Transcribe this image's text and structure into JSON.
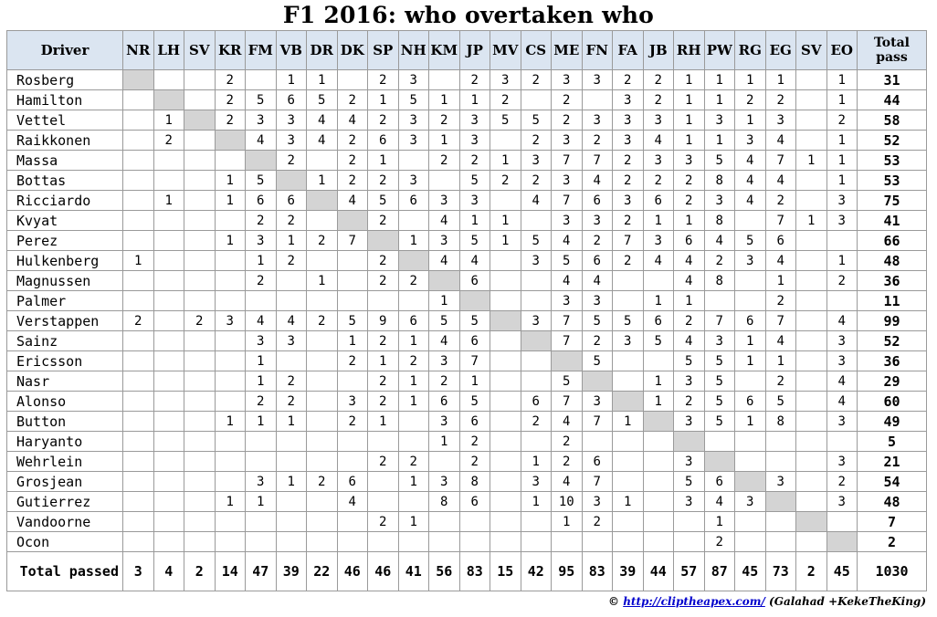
{
  "title": "F1 2016: who overtaken who",
  "header": {
    "driver_label": "Driver",
    "total_label": "Total pass",
    "columns": [
      "NR",
      "LH",
      "SV",
      "KR",
      "FM",
      "VB",
      "DR",
      "DK",
      "SP",
      "NH",
      "KM",
      "JP",
      "MV",
      "CS",
      "ME",
      "FN",
      "FA",
      "JB",
      "RH",
      "PW",
      "RG",
      "EG",
      "SV",
      "EO"
    ]
  },
  "rows": [
    {
      "driver": "Rosberg",
      "diag": 0,
      "cells": [
        "",
        "",
        "",
        "2",
        "",
        "1",
        "1",
        "",
        "2",
        "3",
        "",
        "2",
        "3",
        "2",
        "3",
        "3",
        "2",
        "2",
        "1",
        "1",
        "1",
        "1",
        "",
        "1"
      ],
      "total": "31"
    },
    {
      "driver": "Hamilton",
      "diag": 1,
      "cells": [
        "",
        "",
        "",
        "2",
        "5",
        "6",
        "5",
        "2",
        "1",
        "5",
        "1",
        "1",
        "2",
        "",
        "2",
        "",
        "3",
        "2",
        "1",
        "1",
        "2",
        "2",
        "",
        "1"
      ],
      "total": "44"
    },
    {
      "driver": "Vettel",
      "diag": 2,
      "cells": [
        "",
        "1",
        "",
        "2",
        "3",
        "3",
        "4",
        "4",
        "2",
        "3",
        "2",
        "3",
        "5",
        "5",
        "2",
        "3",
        "3",
        "3",
        "1",
        "3",
        "1",
        "3",
        "",
        "2"
      ],
      "total": "58"
    },
    {
      "driver": "Raikkonen",
      "diag": 3,
      "cells": [
        "",
        "2",
        "",
        "",
        "4",
        "3",
        "4",
        "2",
        "6",
        "3",
        "1",
        "3",
        "",
        "2",
        "3",
        "2",
        "3",
        "4",
        "1",
        "1",
        "3",
        "4",
        "",
        "1"
      ],
      "total": "52"
    },
    {
      "driver": "Massa",
      "diag": 4,
      "cells": [
        "",
        "",
        "",
        "",
        "",
        "2",
        "",
        "2",
        "1",
        "",
        "2",
        "2",
        "1",
        "3",
        "7",
        "7",
        "2",
        "3",
        "3",
        "5",
        "4",
        "7",
        "1",
        "1"
      ],
      "total": "53"
    },
    {
      "driver": "Bottas",
      "diag": 5,
      "cells": [
        "",
        "",
        "",
        "1",
        "5",
        "",
        "1",
        "2",
        "2",
        "3",
        "",
        "5",
        "2",
        "2",
        "3",
        "4",
        "2",
        "2",
        "2",
        "8",
        "4",
        "4",
        "",
        "1"
      ],
      "total": "53"
    },
    {
      "driver": "Ricciardo",
      "diag": 6,
      "cells": [
        "",
        "1",
        "",
        "1",
        "6",
        "6",
        "",
        "4",
        "5",
        "6",
        "3",
        "3",
        "",
        "4",
        "7",
        "6",
        "3",
        "6",
        "2",
        "3",
        "4",
        "2",
        "",
        "3"
      ],
      "total": "75"
    },
    {
      "driver": "Kvyat",
      "diag": 7,
      "cells": [
        "",
        "",
        "",
        "",
        "2",
        "2",
        "",
        "",
        "2",
        "",
        "4",
        "1",
        "1",
        "",
        "3",
        "3",
        "2",
        "1",
        "1",
        "8",
        "",
        "7",
        "1",
        "3"
      ],
      "total": "41"
    },
    {
      "driver": "Perez",
      "diag": 8,
      "cells": [
        "",
        "",
        "",
        "1",
        "3",
        "1",
        "2",
        "7",
        "",
        "1",
        "3",
        "5",
        "1",
        "5",
        "4",
        "2",
        "7",
        "3",
        "6",
        "4",
        "5",
        "6",
        "",
        ""
      ],
      "total": "66"
    },
    {
      "driver": "Hulkenberg",
      "diag": 9,
      "cells": [
        "1",
        "",
        "",
        "",
        "1",
        "2",
        "",
        "",
        "2",
        "",
        "4",
        "4",
        "",
        "3",
        "5",
        "6",
        "2",
        "4",
        "4",
        "2",
        "3",
        "4",
        "",
        "1"
      ],
      "total": "48"
    },
    {
      "driver": "Magnussen",
      "diag": 10,
      "cells": [
        "",
        "",
        "",
        "",
        "2",
        "",
        "1",
        "",
        "2",
        "2",
        "",
        "6",
        "",
        "",
        "4",
        "4",
        "",
        "",
        "4",
        "8",
        "",
        "1",
        "",
        "2"
      ],
      "total": "36"
    },
    {
      "driver": "Palmer",
      "diag": 11,
      "cells": [
        "",
        "",
        "",
        "",
        "",
        "",
        "",
        "",
        "",
        "",
        "1",
        "",
        "",
        "",
        "3",
        "3",
        "",
        "1",
        "1",
        "",
        "",
        "2",
        "",
        ""
      ],
      "total": "11"
    },
    {
      "driver": "Verstappen",
      "diag": 12,
      "cells": [
        "2",
        "",
        "2",
        "3",
        "4",
        "4",
        "2",
        "5",
        "9",
        "6",
        "5",
        "5",
        "",
        "3",
        "7",
        "5",
        "5",
        "6",
        "2",
        "7",
        "6",
        "7",
        "",
        "4"
      ],
      "total": "99"
    },
    {
      "driver": "Sainz",
      "diag": 13,
      "cells": [
        "",
        "",
        "",
        "",
        "3",
        "3",
        "",
        "1",
        "2",
        "1",
        "4",
        "6",
        "",
        "",
        "7",
        "2",
        "3",
        "5",
        "4",
        "3",
        "1",
        "4",
        "",
        "3"
      ],
      "total": "52"
    },
    {
      "driver": "Ericsson",
      "diag": 14,
      "cells": [
        "",
        "",
        "",
        "",
        "1",
        "",
        "",
        "2",
        "1",
        "2",
        "3",
        "7",
        "",
        "",
        "",
        "5",
        "",
        "",
        "5",
        "5",
        "1",
        "1",
        "",
        "3"
      ],
      "total": "36"
    },
    {
      "driver": "Nasr",
      "diag": 15,
      "cells": [
        "",
        "",
        "",
        "",
        "1",
        "2",
        "",
        "",
        "2",
        "1",
        "2",
        "1",
        "",
        "",
        "5",
        "",
        "",
        "1",
        "3",
        "5",
        "",
        "2",
        "",
        "4"
      ],
      "total": "29"
    },
    {
      "driver": "Alonso",
      "diag": 16,
      "cells": [
        "",
        "",
        "",
        "",
        "2",
        "2",
        "",
        "3",
        "2",
        "1",
        "6",
        "5",
        "",
        "6",
        "7",
        "3",
        "",
        "1",
        "2",
        "5",
        "6",
        "5",
        "",
        "4"
      ],
      "total": "60"
    },
    {
      "driver": "Button",
      "diag": 17,
      "cells": [
        "",
        "",
        "",
        "1",
        "1",
        "1",
        "",
        "2",
        "1",
        "",
        "3",
        "6",
        "",
        "2",
        "4",
        "7",
        "1",
        "",
        "3",
        "5",
        "1",
        "8",
        "",
        "3"
      ],
      "total": "49"
    },
    {
      "driver": "Haryanto",
      "diag": 18,
      "cells": [
        "",
        "",
        "",
        "",
        "",
        "",
        "",
        "",
        "",
        "",
        "1",
        "2",
        "",
        "",
        "2",
        "",
        "",
        "",
        "",
        "",
        "",
        "",
        "",
        ""
      ],
      "total": "5"
    },
    {
      "driver": "Wehrlein",
      "diag": 19,
      "cells": [
        "",
        "",
        "",
        "",
        "",
        "",
        "",
        "",
        "2",
        "2",
        "",
        "2",
        "",
        "1",
        "2",
        "6",
        "",
        "",
        "3",
        "",
        "",
        "",
        "",
        "3"
      ],
      "total": "21"
    },
    {
      "driver": "Grosjean",
      "diag": 20,
      "cells": [
        "",
        "",
        "",
        "",
        "3",
        "1",
        "2",
        "6",
        "",
        "1",
        "3",
        "8",
        "",
        "3",
        "4",
        "7",
        "",
        "",
        "5",
        "6",
        "",
        "3",
        "",
        "2"
      ],
      "total": "54"
    },
    {
      "driver": "Gutierrez",
      "diag": 21,
      "cells": [
        "",
        "",
        "",
        "1",
        "1",
        "",
        "",
        "4",
        "",
        "",
        "8",
        "6",
        "",
        "1",
        "10",
        "3",
        "1",
        "",
        "3",
        "4",
        "3",
        "",
        "",
        "3"
      ],
      "total": "48"
    },
    {
      "driver": "Vandoorne",
      "diag": 22,
      "cells": [
        "",
        "",
        "",
        "",
        "",
        "",
        "",
        "",
        "2",
        "1",
        "",
        "",
        "",
        "",
        "1",
        "2",
        "",
        "",
        "",
        "1",
        "",
        "",
        "",
        ""
      ],
      "total": "7"
    },
    {
      "driver": "Ocon",
      "diag": 23,
      "cells": [
        "",
        "",
        "",
        "",
        "",
        "",
        "",
        "",
        "",
        "",
        "",
        "",
        "",
        "",
        "",
        "",
        "",
        "",
        "",
        "2",
        "",
        "",
        "",
        ""
      ],
      "total": "2"
    }
  ],
  "footer": {
    "label": "Total passed",
    "values": [
      "3",
      "4",
      "2",
      "14",
      "47",
      "39",
      "22",
      "46",
      "46",
      "41",
      "56",
      "83",
      "15",
      "42",
      "95",
      "83",
      "39",
      "44",
      "57",
      "87",
      "45",
      "73",
      "2",
      "45"
    ],
    "grand_total": "1030"
  },
  "credit": {
    "symbol": "©",
    "link_text": "http://cliptheapex.com/",
    "authors": "(Galahad +KekeTheKing)"
  }
}
